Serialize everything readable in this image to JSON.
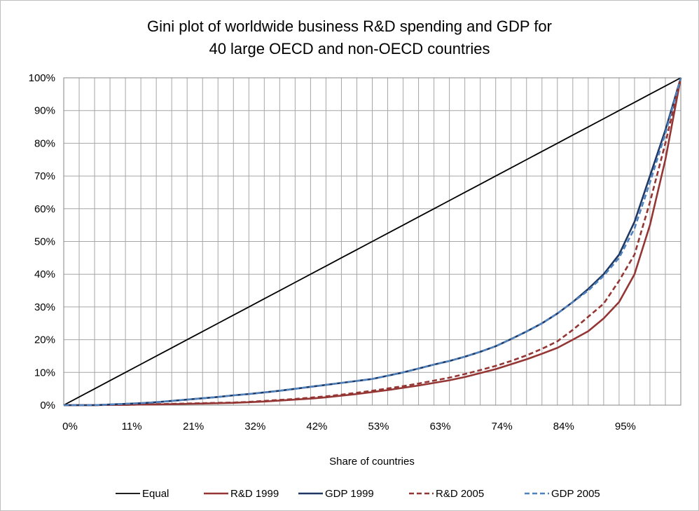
{
  "chart_data": {
    "type": "line",
    "title_line1": "Gini plot of worldwide business R&D spending and GDP for",
    "title_line2": "40 large OECD and non-OECD countries",
    "xlabel": "Share of countries",
    "ylabel": "",
    "xlim": [
      0,
      40
    ],
    "ylim": [
      0,
      100
    ],
    "y_ticks": [
      "0%",
      "10%",
      "20%",
      "30%",
      "40%",
      "50%",
      "60%",
      "70%",
      "80%",
      "90%",
      "100%"
    ],
    "x_tick_labels": [
      "0%",
      "11%",
      "21%",
      "32%",
      "42%",
      "53%",
      "63%",
      "74%",
      "84%",
      "95%"
    ],
    "x_tick_indices": [
      0,
      4,
      8,
      12,
      16,
      20,
      24,
      28,
      32,
      36
    ],
    "grid": true,
    "legend_position": "bottom",
    "series": [
      {
        "name": "Equal",
        "color": "#000000",
        "dash": "solid",
        "values": [
          0,
          2.5,
          5,
          7.5,
          10,
          12.5,
          15,
          17.5,
          20,
          22.5,
          25,
          27.5,
          30,
          32.5,
          35,
          37.5,
          40,
          42.5,
          45,
          47.5,
          50,
          52.5,
          55,
          57.5,
          60,
          62.5,
          65,
          67.5,
          70,
          72.5,
          75,
          77.5,
          80,
          82.5,
          85,
          87.5,
          90,
          92.5,
          95,
          97.5,
          100
        ]
      },
      {
        "name": "R&D 1999",
        "color": "#943634",
        "dash": "solid",
        "values": [
          0,
          0,
          0,
          0.1,
          0.1,
          0.2,
          0.2,
          0.3,
          0.4,
          0.5,
          0.6,
          0.7,
          0.9,
          1.1,
          1.4,
          1.7,
          2.0,
          2.4,
          2.9,
          3.4,
          4.0,
          4.6,
          5.3,
          6.0,
          6.8,
          7.6,
          8.6,
          9.8,
          11.0,
          12.5,
          14.0,
          15.7,
          17.5,
          20.0,
          22.6,
          26.5,
          31.5,
          40.0,
          55.0,
          75.0,
          100
        ]
      },
      {
        "name": "GDP 1999",
        "color": "#1f3864",
        "dash": "solid",
        "values": [
          0,
          0,
          0,
          0.2,
          0.4,
          0.6,
          0.9,
          1.3,
          1.7,
          2.1,
          2.5,
          3.0,
          3.4,
          3.9,
          4.4,
          5.0,
          5.6,
          6.2,
          6.8,
          7.4,
          8.0,
          9.0,
          10.0,
          11.2,
          12.4,
          13.5,
          14.8,
          16.3,
          18.0,
          20.2,
          22.5,
          25.0,
          28.0,
          31.5,
          35.5,
          40.0,
          46.0,
          56.0,
          70.0,
          84.0,
          100
        ]
      },
      {
        "name": "R&D 2005",
        "color": "#943634",
        "dash": "dashed",
        "values": [
          0,
          0,
          0,
          0.1,
          0.1,
          0.2,
          0.3,
          0.4,
          0.5,
          0.6,
          0.7,
          0.8,
          1.0,
          1.3,
          1.6,
          1.9,
          2.3,
          2.7,
          3.2,
          3.8,
          4.4,
          5.1,
          5.8,
          6.6,
          7.5,
          8.4,
          9.5,
          10.7,
          12.0,
          13.5,
          15.2,
          17.2,
          19.5,
          23.0,
          27.0,
          31.0,
          38.0,
          46.0,
          62.0,
          80.0,
          100
        ]
      },
      {
        "name": "GDP 2005",
        "color": "#4f81bd",
        "dash": "dashed",
        "values": [
          0,
          0,
          0,
          0.2,
          0.4,
          0.6,
          0.9,
          1.3,
          1.7,
          2.1,
          2.5,
          3.0,
          3.4,
          3.9,
          4.4,
          5.0,
          5.6,
          6.2,
          6.8,
          7.4,
          8.0,
          9.0,
          10.0,
          11.2,
          12.4,
          13.5,
          14.8,
          16.3,
          18.0,
          20.2,
          22.5,
          25.0,
          28.0,
          31.5,
          35.0,
          39.5,
          45.0,
          54.0,
          68.0,
          83.0,
          100
        ]
      }
    ]
  }
}
